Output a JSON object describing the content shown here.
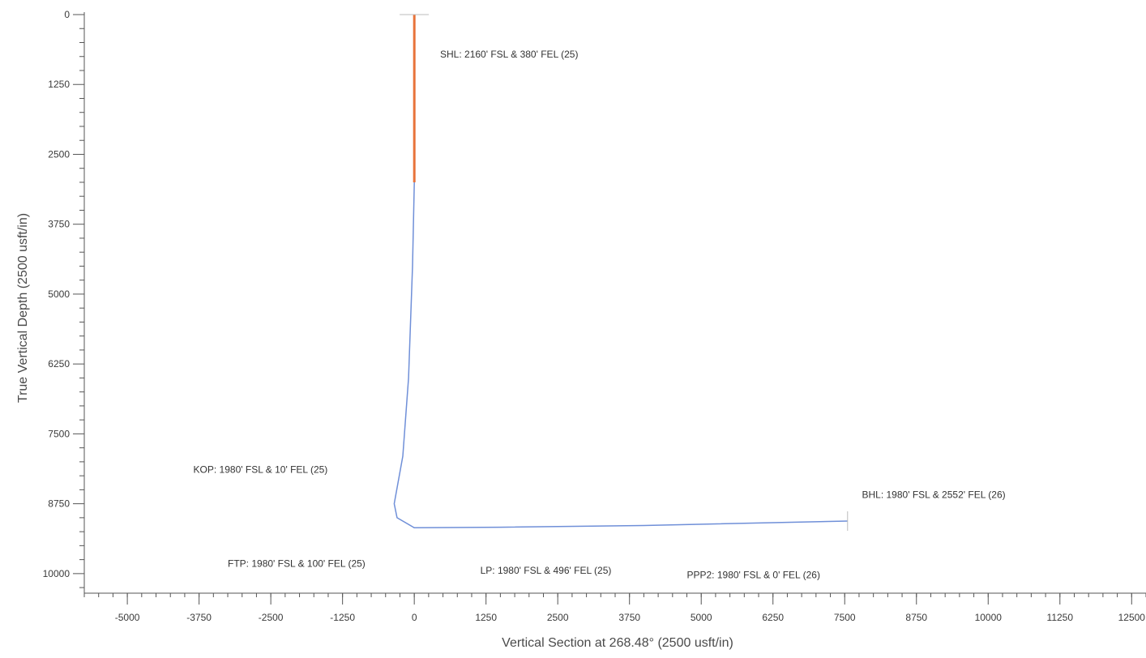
{
  "chart_data": {
    "type": "line",
    "title": "",
    "xlabel": "Vertical Section at 268.48° (2500 usft/in)",
    "ylabel": "True Vertical Depth (2500 usft/in)",
    "xlim": [
      -5750,
      12750
    ],
    "ylim": [
      0,
      10350
    ],
    "y_inverted": true,
    "grid": false,
    "x_ticks": [
      -5000,
      -3750,
      -2500,
      -1250,
      0,
      1250,
      2500,
      3750,
      5000,
      6250,
      7500,
      8750,
      10000,
      11250,
      12500
    ],
    "y_ticks": [
      0,
      1250,
      2500,
      3750,
      5000,
      6250,
      7500,
      8750,
      10000
    ],
    "colors": {
      "vertical_segment": "#e8733a",
      "wellpath": "#6f8fd8",
      "axis": "#555555"
    },
    "series": [
      {
        "segment": "vertical",
        "points": [
          [
            0,
            0
          ],
          [
            0,
            3000
          ]
        ]
      },
      {
        "segment": "wellpath",
        "points": [
          [
            0,
            3000
          ],
          [
            -30,
            4500
          ],
          [
            -100,
            6500
          ],
          [
            -200,
            7900
          ],
          [
            -350,
            8750
          ],
          [
            -300,
            9000
          ],
          [
            0,
            9180
          ],
          [
            1500,
            9170
          ],
          [
            4000,
            9140
          ],
          [
            7550,
            9060
          ]
        ]
      }
    ],
    "annotations": [
      {
        "text": "SHL: 2160' FSL & 380' FEL (25)",
        "x": 450,
        "y": 770
      },
      {
        "text": "KOP: 1980' FSL & 10' FEL (25)",
        "x": -3850,
        "y": 8200
      },
      {
        "text": "BHL: 1980' FSL & 2552' FEL (26)",
        "x": 7800,
        "y": 8650
      },
      {
        "text": "FTP: 1980' FSL & 100' FEL (25)",
        "x": -3250,
        "y": 9880
      },
      {
        "text": "LP: 1980' FSL & 496' FEL (25)",
        "x": 1150,
        "y": 10000
      },
      {
        "text": "PPP2: 1980' FSL & 0' FEL (26)",
        "x": 4750,
        "y": 10080
      }
    ]
  }
}
